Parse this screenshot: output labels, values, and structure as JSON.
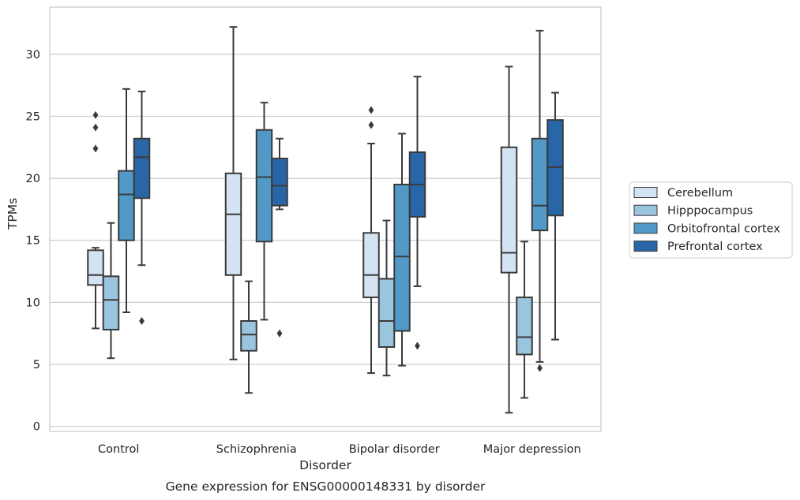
{
  "chart_data": {
    "type": "box",
    "title": "",
    "caption": "Gene expression for ENSG00000148331 by disorder",
    "xlabel": "Disorder",
    "ylabel": "TPMs",
    "ylim": [
      -0.4,
      33.8
    ],
    "yticks": [
      0,
      5,
      10,
      15,
      20,
      25,
      30
    ],
    "grid": "horizontal",
    "legend_position": "right",
    "categories": [
      "Control",
      "Schizophrenia",
      "Bipolar disorder",
      "Major depression"
    ],
    "series": [
      {
        "name": "Cerebellum",
        "color": "#d4e3f3",
        "boxes": [
          {
            "whislo": 7.9,
            "q1": 11.4,
            "med": 12.2,
            "q3": 14.2,
            "whishi": 14.4,
            "fliers": [
              22.4,
              24.1,
              25.1
            ]
          },
          {
            "whislo": 5.4,
            "q1": 12.2,
            "med": 17.1,
            "q3": 20.4,
            "whishi": 32.2,
            "fliers": []
          },
          {
            "whislo": 4.3,
            "q1": 10.4,
            "med": 12.2,
            "q3": 15.6,
            "whishi": 22.8,
            "fliers": [
              24.3,
              25.5
            ]
          },
          {
            "whislo": 1.1,
            "q1": 12.4,
            "med": 14.0,
            "q3": 22.5,
            "whishi": 29.0,
            "fliers": []
          }
        ]
      },
      {
        "name": "Hipppocampus",
        "color": "#9ac5df",
        "boxes": [
          {
            "whislo": 5.5,
            "q1": 7.8,
            "med": 10.2,
            "q3": 12.1,
            "whishi": 16.4,
            "fliers": []
          },
          {
            "whislo": 2.7,
            "q1": 6.1,
            "med": 7.4,
            "q3": 8.5,
            "whishi": 11.7,
            "fliers": []
          },
          {
            "whislo": 4.1,
            "q1": 6.4,
            "med": 8.5,
            "q3": 11.9,
            "whishi": 16.6,
            "fliers": []
          },
          {
            "whislo": 2.3,
            "q1": 5.8,
            "med": 7.2,
            "q3": 10.4,
            "whishi": 14.9,
            "fliers": []
          }
        ]
      },
      {
        "name": "Orbitofrontal cortex",
        "color": "#5199c7",
        "boxes": [
          {
            "whislo": 9.2,
            "q1": 15.0,
            "med": 18.7,
            "q3": 20.6,
            "whishi": 27.2,
            "fliers": []
          },
          {
            "whislo": 8.6,
            "q1": 14.9,
            "med": 20.1,
            "q3": 23.9,
            "whishi": 26.1,
            "fliers": []
          },
          {
            "whislo": 4.9,
            "q1": 7.7,
            "med": 13.7,
            "q3": 19.5,
            "whishi": 23.6,
            "fliers": []
          },
          {
            "whislo": 5.2,
            "q1": 15.8,
            "med": 17.8,
            "q3": 23.2,
            "whishi": 31.9,
            "fliers": [
              4.7
            ]
          }
        ]
      },
      {
        "name": "Prefrontal cortex",
        "color": "#2966a8",
        "boxes": [
          {
            "whislo": 13.0,
            "q1": 18.4,
            "med": 21.7,
            "q3": 23.2,
            "whishi": 27.0,
            "fliers": [
              8.5
            ]
          },
          {
            "whislo": 17.5,
            "q1": 17.8,
            "med": 19.4,
            "q3": 21.6,
            "whishi": 23.2,
            "fliers": [
              7.5
            ]
          },
          {
            "whislo": 11.3,
            "q1": 16.9,
            "med": 19.5,
            "q3": 22.1,
            "whishi": 28.2,
            "fliers": [
              6.5
            ]
          },
          {
            "whislo": 7.0,
            "q1": 17.0,
            "med": 20.9,
            "q3": 24.7,
            "whishi": 26.9,
            "fliers": []
          }
        ]
      }
    ]
  }
}
